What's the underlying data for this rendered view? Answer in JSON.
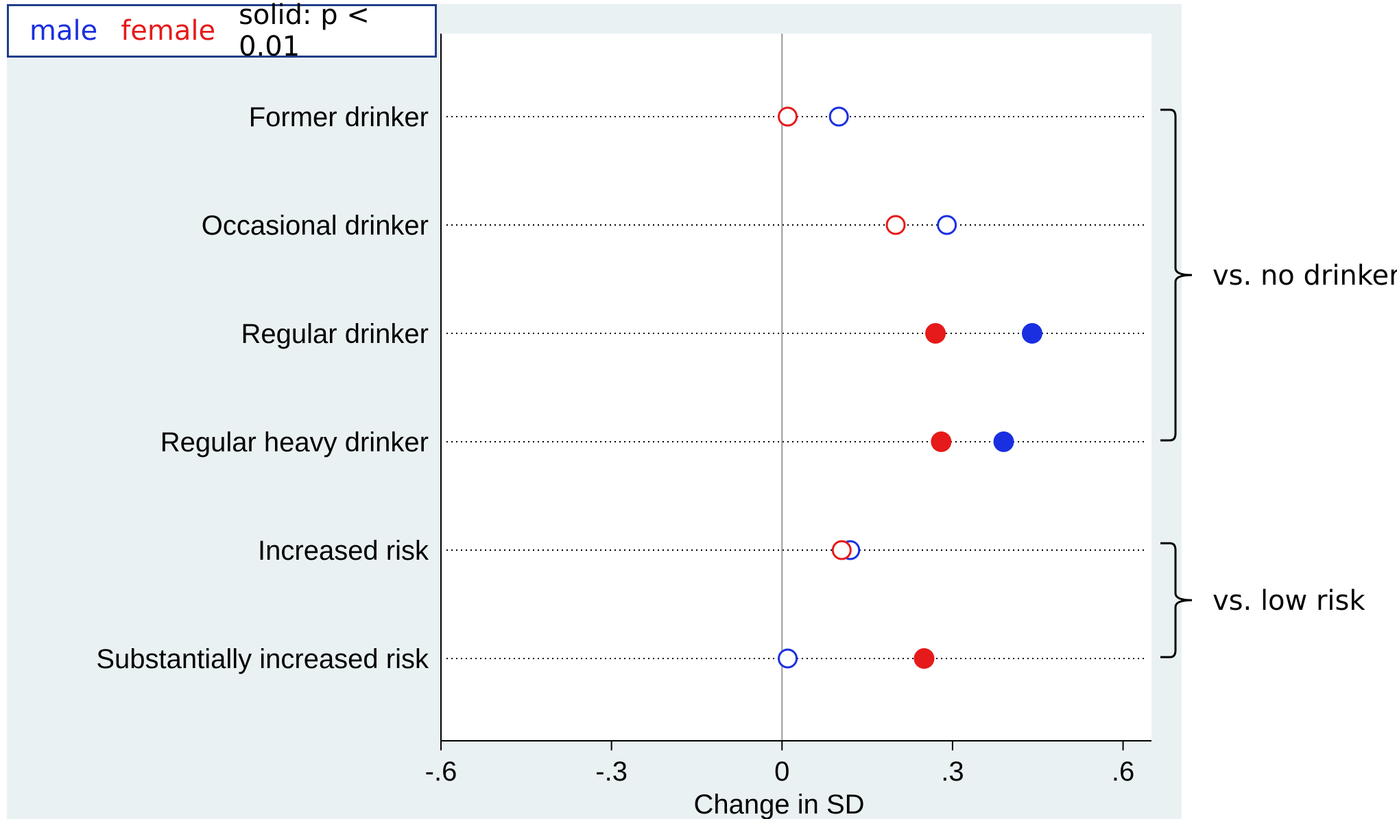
{
  "legend": {
    "male_label": "male",
    "female_label": "female",
    "note": "solid: p < 0.01",
    "male_color": "#1a2fe0",
    "female_color": "#e61a1a",
    "border_color": "#1f3d8a"
  },
  "chart_data": {
    "type": "scatter",
    "title": "",
    "xlabel": "Change in SD",
    "ylabel": "",
    "xlim": [
      -0.6,
      0.65
    ],
    "xticks": [
      -0.6,
      -0.3,
      0,
      0.3,
      0.6
    ],
    "xtick_labels": [
      "-.6",
      "-.3",
      "0",
      ".3",
      ".6"
    ],
    "reference_line": 0,
    "categories": [
      "Former drinker",
      "Occasional drinker",
      "Regular drinker",
      "Regular heavy drinker",
      "Increased risk",
      "Substantially increased risk"
    ],
    "series": [
      {
        "name": "male",
        "color": "#1a2fe0",
        "values": [
          0.1,
          0.29,
          0.44,
          0.39,
          0.12,
          0.01
        ],
        "significant": [
          false,
          false,
          true,
          true,
          false,
          false
        ]
      },
      {
        "name": "female",
        "color": "#e61a1a",
        "values": [
          0.01,
          0.2,
          0.27,
          0.28,
          0.105,
          0.25
        ],
        "significant": [
          false,
          false,
          true,
          true,
          false,
          true
        ]
      }
    ],
    "groups": [
      {
        "label": "vs. no drinker",
        "from": 0,
        "to": 3
      },
      {
        "label": "vs. low risk",
        "from": 4,
        "to": 5
      }
    ],
    "background_color": "#eaf1f3",
    "plot_background": "#ffffff"
  }
}
